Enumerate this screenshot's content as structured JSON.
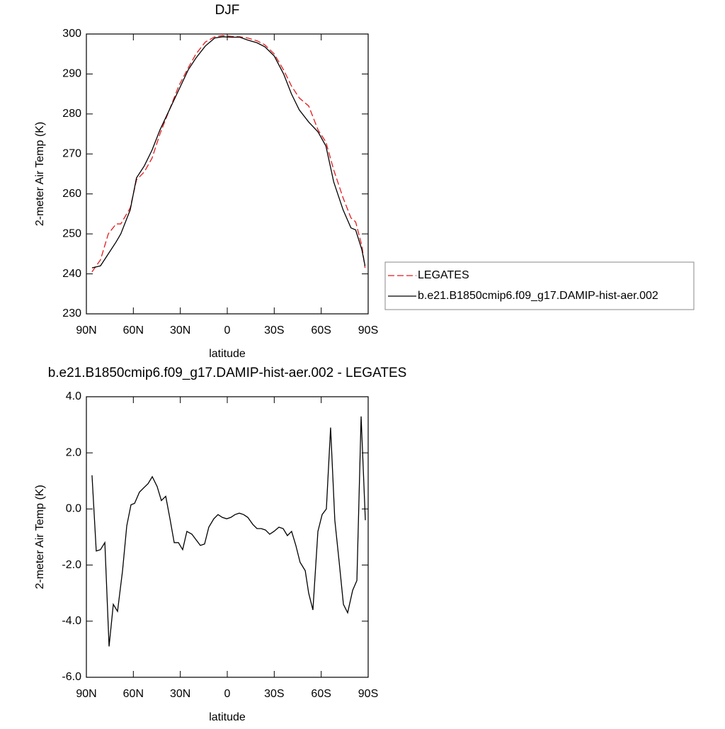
{
  "chart_data": [
    {
      "type": "line",
      "title": "DJF",
      "x_label": "latitude",
      "y_label": "2-meter Air Temp (K)",
      "x": [
        86.4,
        81,
        76,
        71,
        68,
        62,
        58,
        53,
        48,
        43,
        37,
        31,
        25,
        20,
        14,
        8,
        3,
        -3,
        -8,
        -13,
        -19,
        -24,
        -30,
        -36,
        -41,
        -46,
        -52,
        -58,
        -63,
        -68,
        -74,
        -79,
        -82,
        -86,
        -88
      ],
      "series": [
        {
          "name": "LEGATES",
          "color": "#e31a1c",
          "line_style": "dashed",
          "values": [
            240.5,
            243.5,
            250,
            252.5,
            252.5,
            256.5,
            263.5,
            265.5,
            269,
            275,
            281,
            287,
            291.5,
            295,
            298,
            299.3,
            299.6,
            299.4,
            299.3,
            299,
            298.3,
            297.3,
            295,
            291,
            287,
            284,
            282,
            276,
            273,
            266,
            259,
            254,
            253,
            247,
            241.5
          ]
        },
        {
          "name": "b.e21.B1850cmip6.f09_g17.DAMIP-hist-aer.002",
          "color": "#000000",
          "line_style": "solid",
          "values": [
            241.5,
            242,
            245,
            248,
            250,
            256,
            264,
            267,
            271,
            276,
            281,
            286,
            291,
            294,
            297,
            299,
            299.3,
            299.2,
            299.2,
            298.5,
            297.8,
            296.8,
            294.5,
            290,
            285,
            281,
            278,
            275.5,
            272,
            263,
            256,
            251.5,
            251,
            246,
            242
          ]
        }
      ],
      "xlim": [
        90,
        -90
      ],
      "xticks": [
        {
          "value": 90,
          "label": "90N"
        },
        {
          "value": 60,
          "label": "60N"
        },
        {
          "value": 30,
          "label": "30N"
        },
        0,
        {
          "value": -30,
          "label": "30S"
        },
        {
          "value": -60,
          "label": "60S"
        },
        {
          "value": -90,
          "label": "90S"
        }
      ],
      "ylim": [
        230,
        300
      ],
      "yticks": [
        230,
        240,
        250,
        260,
        270,
        280,
        290,
        300
      ],
      "legend": "right"
    },
    {
      "type": "line",
      "title": "b.e21.B1850cmip6.f09_g17.DAMIP-hist-aer.002 - LEGATES",
      "x_label": "latitude",
      "y_label": "2-meter Air Temp (K)",
      "x": [
        86.4,
        83.7,
        81,
        78.2,
        75.5,
        72.8,
        70.1,
        66.9,
        64.2,
        61.5,
        59.2,
        56.1,
        53.4,
        50.6,
        47.9,
        44.8,
        42.1,
        39.3,
        36.6,
        33.9,
        31.2,
        28.5,
        25.8,
        22.6,
        19.9,
        17.2,
        14.5,
        11.8,
        8.6,
        5.9,
        3.2,
        0.4,
        -2.3,
        -5,
        -7.7,
        -10.4,
        -13.1,
        -16.3,
        -19,
        -21.7,
        -24.4,
        -27.1,
        -29.8,
        -33,
        -35.7,
        -38.4,
        -41.1,
        -43.8,
        -46.5,
        -49.8,
        -52,
        -54.7,
        -57.9,
        -60.6,
        -63.3,
        -66,
        -68.7,
        -71.5,
        -74.2,
        -76.9,
        -80.1,
        -82.8,
        -85.5,
        -88.2
      ],
      "series": [
        {
          "color": "#000000",
          "line_style": "solid",
          "values": [
            1.2,
            -1.5,
            -1.45,
            -1.2,
            -4.9,
            -3.4,
            -3.65,
            -2.2,
            -0.6,
            0.15,
            0.2,
            0.6,
            0.75,
            0.9,
            1.15,
            0.8,
            0.3,
            0.45,
            -0.35,
            -1.2,
            -1.2,
            -1.45,
            -0.8,
            -0.9,
            -1.1,
            -1.3,
            -1.25,
            -0.65,
            -0.35,
            -0.2,
            -0.3,
            -0.35,
            -0.3,
            -0.2,
            -0.15,
            -0.2,
            -0.3,
            -0.55,
            -0.7,
            -0.7,
            -0.75,
            -0.9,
            -0.8,
            -0.65,
            -0.7,
            -0.95,
            -0.8,
            -1.3,
            -1.9,
            -2.2,
            -3.0,
            -3.6,
            -0.8,
            -0.2,
            0.0,
            2.9,
            -0.4,
            -1.9,
            -3.4,
            -3.7,
            -2.9,
            -2.55,
            3.3,
            -0.4
          ]
        }
      ],
      "xlim": [
        90,
        -90
      ],
      "xticks": [
        {
          "value": 90,
          "label": "90N"
        },
        {
          "value": 60,
          "label": "60N"
        },
        {
          "value": 30,
          "label": "30N"
        },
        0,
        {
          "value": -30,
          "label": "30S"
        },
        {
          "value": -60,
          "label": "60S"
        },
        {
          "value": -90,
          "label": "90S"
        }
      ],
      "ylim": [
        -6,
        4
      ],
      "yticks": [
        {
          "value": -6,
          "label": "-6.0"
        },
        {
          "value": -4,
          "label": "-4.0"
        },
        {
          "value": -2,
          "label": "-2.0"
        },
        {
          "value": 0,
          "label": "0.0"
        },
        {
          "value": 2,
          "label": "2.0"
        },
        {
          "value": 4,
          "label": "4.0"
        }
      ]
    }
  ]
}
